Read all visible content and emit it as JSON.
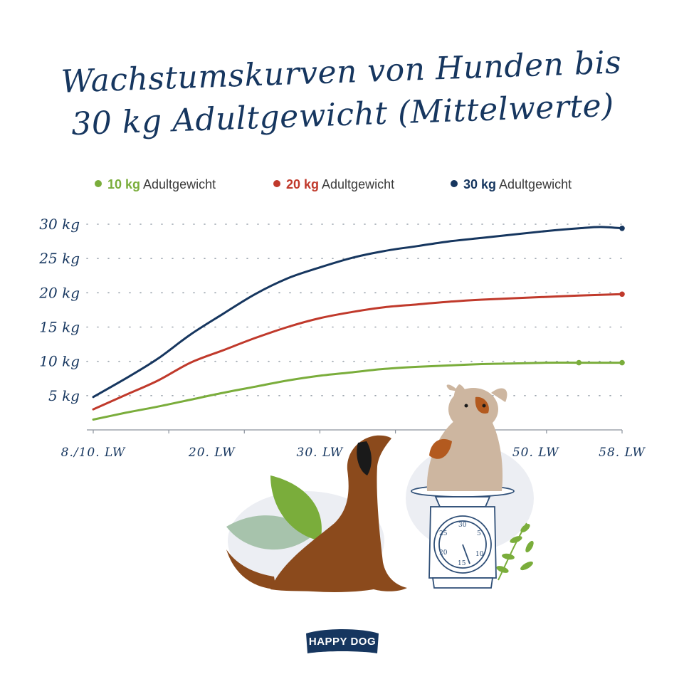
{
  "title": {
    "line1": "Wachstumskurven von Hunden bis",
    "line2": "30 kg Adultgewicht (Mittelwerte)"
  },
  "legend": [
    {
      "bold": "10 kg",
      "text": "Adultgewicht",
      "color": "#7aad3b"
    },
    {
      "bold": "20 kg",
      "text": "Adultgewicht",
      "color": "#c0392b"
    },
    {
      "bold": "30 kg",
      "text": "Adultgewicht",
      "color": "#16365f"
    }
  ],
  "chart_data": {
    "type": "line",
    "title": "Wachstumskurven von Hunden bis 30 kg Adultgewicht (Mittelwerte)",
    "xlabel": "",
    "ylabel": "",
    "x_tick_labels": [
      {
        "x": 9,
        "label": "8./10. LW"
      },
      {
        "x": 20,
        "label": "20. LW"
      },
      {
        "x": 30,
        "label": "30. LW"
      },
      {
        "x": 50,
        "label": "50. LW"
      },
      {
        "x": 58,
        "label": "58. LW"
      }
    ],
    "y_tick_labels": [
      {
        "y": 5,
        "label": "5 kg"
      },
      {
        "y": 10,
        "label": "10 kg"
      },
      {
        "y": 15,
        "label": "15 kg"
      },
      {
        "y": 20,
        "label": "20 kg"
      },
      {
        "y": 25,
        "label": "25 kg"
      },
      {
        "y": 30,
        "label": "30 kg"
      }
    ],
    "xlim": [
      9,
      58
    ],
    "ylim": [
      0,
      30
    ],
    "grid": "horizontal dotted",
    "legend_position": "top",
    "series": [
      {
        "name": "10 kg Adultgewicht",
        "color": "#7aad3b",
        "x": [
          9,
          12,
          15,
          18,
          21,
          24,
          27,
          30,
          33,
          36,
          39,
          42,
          45,
          48,
          51,
          54,
          58
        ],
        "y": [
          1.5,
          2.5,
          3.4,
          4.4,
          5.4,
          6.3,
          7.2,
          7.9,
          8.4,
          8.9,
          9.2,
          9.4,
          9.6,
          9.7,
          9.8,
          9.8,
          9.8
        ],
        "end_markers": [
          54,
          58
        ]
      },
      {
        "name": "20 kg Adultgewicht",
        "color": "#c0392b",
        "x": [
          9,
          12,
          15,
          18,
          21,
          24,
          27,
          30,
          33,
          36,
          39,
          42,
          45,
          48,
          51,
          54,
          58
        ],
        "y": [
          3.0,
          5.1,
          7.2,
          9.8,
          11.6,
          13.4,
          15.0,
          16.3,
          17.2,
          17.9,
          18.3,
          18.7,
          19.0,
          19.2,
          19.4,
          19.6,
          19.8
        ],
        "end_markers": [
          58
        ]
      },
      {
        "name": "30 kg Adultgewicht",
        "color": "#16365f",
        "x": [
          9,
          12,
          15,
          18,
          21,
          24,
          27,
          30,
          33,
          36,
          39,
          42,
          45,
          48,
          51,
          54,
          56,
          58
        ],
        "y": [
          4.8,
          7.5,
          10.4,
          13.9,
          16.9,
          19.8,
          22.1,
          23.7,
          25.1,
          26.1,
          26.8,
          27.5,
          28.0,
          28.5,
          29.0,
          29.4,
          29.6,
          29.4
        ],
        "end_markers": [
          58
        ]
      }
    ]
  },
  "logo": {
    "text": "HAPPY DOG",
    "color": "#16365f"
  },
  "decor": {
    "brown_dog_color": "#8b4a1c",
    "tan_dog_color": "#cdb6a0",
    "spot_color": "#b35a1f",
    "leaf_green": "#7aad3b",
    "leaf_gray": "#a7c3ac",
    "scale_color": "#2f4f77",
    "icons": [
      "brown-dog-illustration",
      "sitting-puppy-illustration",
      "weighing-scale-illustration",
      "leaf-illustration"
    ],
    "scale_dial": [
      "30",
      "5",
      "10",
      "15",
      "20",
      "25"
    ]
  }
}
